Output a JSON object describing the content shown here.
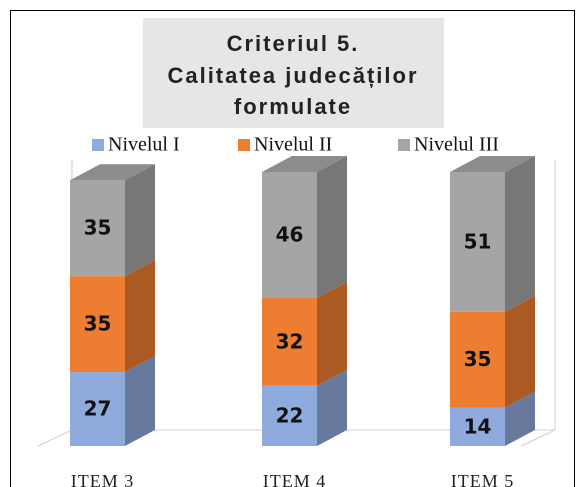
{
  "chart_data": {
    "type": "bar3d_stacked",
    "title": [
      "Criteriul 5.",
      "Calitatea judecăților",
      "formulate"
    ],
    "categories": [
      "ITEM 3",
      "ITEM 4",
      "ITEM 5"
    ],
    "series": [
      {
        "name": "Nivelul I",
        "color": "#8faadc",
        "values": [
          27,
          22,
          14
        ]
      },
      {
        "name": "Nivelul II",
        "color": "#ed7d31",
        "values": [
          35,
          32,
          35
        ]
      },
      {
        "name": "Nivelul III",
        "color": "#a5a5a5",
        "values": [
          35,
          46,
          51
        ]
      }
    ]
  }
}
